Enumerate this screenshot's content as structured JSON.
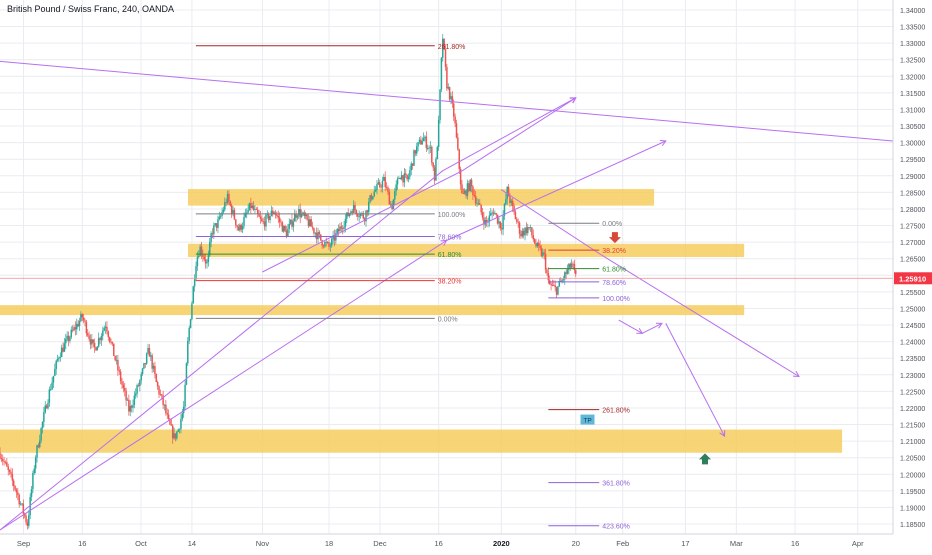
{
  "header": {
    "title": "British Pound / Swiss Franc, 240, OANDA"
  },
  "colors": {
    "zone": "#f6ce5e",
    "bull": "#26a69a",
    "bear": "#ef5350",
    "grid": "#e9ecf0",
    "axis_text": "#50535e",
    "trend": "#b86ff0",
    "fib_red": "#a12828",
    "fib_gray": "#787b86",
    "fib_blue": "#8f62d6",
    "fib_green": "#2e8b2e",
    "fib_bright_red": "#e53935",
    "price_line": "#f28b8b",
    "price_tag_bg": "#f23645",
    "down_arrow": "#d84836",
    "up_arrow": "#2e7d5b",
    "tp_bg": "#5fb8d8"
  },
  "chart_data": {
    "type": "candlestick",
    "title": "British Pound / Swiss Franc, 240, OANDA",
    "ylim": [
      1.182,
      1.343
    ],
    "grid": true,
    "y_ticks": [
      "1.34000",
      "1.33500",
      "1.33000",
      "1.32500",
      "1.32000",
      "1.31500",
      "1.31000",
      "1.30500",
      "1.30000",
      "1.29500",
      "1.29000",
      "1.28500",
      "1.28000",
      "1.27500",
      "1.27000",
      "1.26500",
      "1.26000",
      "1.25500",
      "1.25000",
      "1.24500",
      "1.24000",
      "1.23500",
      "1.23000",
      "1.22500",
      "1.22000",
      "1.21500",
      "1.21000",
      "1.20500",
      "1.20000",
      "1.19500",
      "1.19000",
      "1.18500"
    ],
    "x_ticks": [
      {
        "label": "Sep",
        "d": 0
      },
      {
        "label": "16",
        "d": 15
      },
      {
        "label": "Oct",
        "d": 30
      },
      {
        "label": "14",
        "d": 43
      },
      {
        "label": "Nov",
        "d": 61
      },
      {
        "label": "18",
        "d": 78
      },
      {
        "label": "Dec",
        "d": 91
      },
      {
        "label": "16",
        "d": 106
      },
      {
        "label": "2020",
        "d": 122
      },
      {
        "label": "20",
        "d": 141
      },
      {
        "label": "Feb",
        "d": 153
      },
      {
        "label": "17",
        "d": 169
      },
      {
        "label": "Mar",
        "d": 182
      },
      {
        "label": "16",
        "d": 197
      },
      {
        "label": "Apr",
        "d": 213
      }
    ],
    "x_range_days": [
      -6,
      222
    ],
    "last_price": "1.25910",
    "last_price_value": 1.2591,
    "price_path": [
      [
        -6,
        1.2065
      ],
      [
        -2,
        1.1955
      ],
      [
        1,
        1.185
      ],
      [
        3,
        1.205
      ],
      [
        6,
        1.222
      ],
      [
        9,
        1.236
      ],
      [
        12,
        1.242
      ],
      [
        15,
        1.2475
      ],
      [
        18,
        1.2375
      ],
      [
        21,
        1.2455
      ],
      [
        24,
        1.232
      ],
      [
        27,
        1.219
      ],
      [
        30,
        1.229
      ],
      [
        32,
        1.2375
      ],
      [
        34,
        1.227
      ],
      [
        36,
        1.22
      ],
      [
        37,
        1.2155
      ],
      [
        38.5,
        1.211
      ],
      [
        39.5,
        1.2135
      ],
      [
        41,
        1.2205
      ],
      [
        42,
        1.2405
      ],
      [
        43,
        1.252
      ],
      [
        44,
        1.264
      ],
      [
        45,
        1.2685
      ],
      [
        47,
        1.263
      ],
      [
        48,
        1.273
      ],
      [
        50,
        1.2765
      ],
      [
        52,
        1.2835
      ],
      [
        55,
        1.2735
      ],
      [
        58,
        1.281
      ],
      [
        61,
        1.2755
      ],
      [
        64,
        1.2795
      ],
      [
        67,
        1.2725
      ],
      [
        70,
        1.2795
      ],
      [
        73,
        1.2755
      ],
      [
        76,
        1.2705
      ],
      [
        78,
        1.2685
      ],
      [
        81,
        1.2745
      ],
      [
        84,
        1.2805
      ],
      [
        87,
        1.2775
      ],
      [
        89,
        1.2845
      ],
      [
        92,
        1.2885
      ],
      [
        94,
        1.2805
      ],
      [
        96,
        1.2905
      ],
      [
        98,
        1.2885
      ],
      [
        100,
        1.2975
      ],
      [
        102,
        1.3015
      ],
      [
        104,
        1.2975
      ],
      [
        105,
        1.289
      ],
      [
        106,
        1.3055
      ],
      [
        107,
        1.3325
      ],
      [
        108,
        1.318
      ],
      [
        109,
        1.3135
      ],
      [
        110,
        1.3075
      ],
      [
        111,
        1.2955
      ],
      [
        112,
        1.2835
      ],
      [
        114,
        1.2875
      ],
      [
        116,
        1.2815
      ],
      [
        118,
        1.2755
      ],
      [
        120,
        1.2795
      ],
      [
        122,
        1.2745
      ],
      [
        123.5,
        1.2855
      ],
      [
        125,
        1.2795
      ],
      [
        127,
        1.2725
      ],
      [
        129,
        1.2745
      ],
      [
        131,
        1.2685
      ],
      [
        133,
        1.2655
      ],
      [
        134,
        1.2575
      ],
      [
        136,
        1.2555
      ],
      [
        138,
        1.2595
      ],
      [
        140,
        1.2635
      ],
      [
        141,
        1.2591
      ]
    ],
    "zones": [
      {
        "d0": 42,
        "d1": 161,
        "y0": 1.281,
        "y1": 1.286
      },
      {
        "d0": 42,
        "d1": 184,
        "y0": 1.2655,
        "y1": 1.2695
      },
      {
        "d0": -6,
        "d1": 184,
        "y0": 1.248,
        "y1": 1.251
      },
      {
        "d0": -6,
        "d1": 209,
        "y0": 1.2065,
        "y1": 1.2135
      }
    ],
    "lines": [
      {
        "p": [
          [
            -6,
            1.3245
          ],
          [
            222,
            1.3005
          ]
        ],
        "color": "trend",
        "w": 1
      },
      {
        "p": [
          [
            -6,
            1.1832
          ],
          [
            107,
            1.2915
          ],
          [
            141,
            1.3135
          ]
        ],
        "color": "trend",
        "w": 1
      },
      {
        "p": [
          [
            -6,
            1.1832
          ],
          [
            108,
            1.2705
          ]
        ],
        "color": "trend",
        "w": 1
      },
      {
        "p": [
          [
            61,
            1.261
          ],
          [
            112,
            1.2915
          ],
          [
            141,
            1.3135
          ]
        ],
        "color": "trend",
        "w": 1
      },
      {
        "p": [
          [
            108,
            1.2705
          ],
          [
            164,
            1.3005
          ]
        ],
        "color": "trend",
        "w": 1
      },
      {
        "p": [
          [
            122,
            1.2858
          ],
          [
            148,
            1.2658
          ],
          [
            198,
            1.2295
          ]
        ],
        "color": "trend",
        "w": 1
      },
      {
        "p": [
          [
            152,
            1.2465
          ],
          [
            158,
            1.2425
          ]
        ],
        "color": "trend",
        "w": 1
      },
      {
        "p": [
          [
            158,
            1.2425
          ],
          [
            163,
            1.2455
          ]
        ],
        "color": "trend",
        "w": 1
      },
      {
        "p": [
          [
            164,
            1.2455
          ],
          [
            179,
            1.2115
          ]
        ],
        "color": "trend",
        "w": 1
      }
    ],
    "fib_levels": [
      {
        "d0": 44,
        "d1": 105,
        "y": 1.3292,
        "label": "261.80%",
        "color": "fib_red"
      },
      {
        "d0": 44,
        "d1": 105,
        "y": 1.2785,
        "label": "100.00%",
        "color": "fib_gray"
      },
      {
        "d0": 44,
        "d1": 105,
        "y": 1.2717,
        "label": "78.60%",
        "color": "fib_blue"
      },
      {
        "d0": 44,
        "d1": 105,
        "y": 1.2664,
        "label": "61.80%",
        "color": "fib_green"
      },
      {
        "d0": 44,
        "d1": 105,
        "y": 1.2584,
        "label": "38.20%",
        "color": "fib_bright_red"
      },
      {
        "d0": 44,
        "d1": 105,
        "y": 1.247,
        "label": "0.00%",
        "color": "fib_gray"
      },
      {
        "d0": 134,
        "d1": 147,
        "y": 1.2757,
        "label": "0.00%",
        "color": "fib_gray"
      },
      {
        "d0": 134,
        "d1": 147,
        "y": 1.2676,
        "label": "38.20%",
        "color": "fib_bright_red"
      },
      {
        "d0": 134,
        "d1": 147,
        "y": 1.262,
        "label": "61.80%",
        "color": "fib_green"
      },
      {
        "d0": 134,
        "d1": 147,
        "y": 1.258,
        "label": "78.60%",
        "color": "fib_blue"
      },
      {
        "d0": 134,
        "d1": 147,
        "y": 1.2532,
        "label": "100.00%",
        "color": "fib_blue"
      },
      {
        "d0": 134,
        "d1": 147,
        "y": 1.2195,
        "label": "261.80%",
        "color": "fib_red"
      },
      {
        "d0": 134,
        "d1": 147,
        "y": 1.1975,
        "label": "361.80%",
        "color": "fib_blue"
      },
      {
        "d0": 134,
        "d1": 147,
        "y": 1.1845,
        "label": "423.60%",
        "color": "fib_blue"
      }
    ],
    "markers": [
      {
        "type": "arrow-down",
        "d": 151,
        "y": 1.2715,
        "color": "down_arrow"
      },
      {
        "type": "arrow-up",
        "d": 174,
        "y": 1.2045,
        "color": "up_arrow"
      }
    ],
    "tags": [
      {
        "text": "TP",
        "d": 144,
        "y": 1.2165
      }
    ]
  }
}
